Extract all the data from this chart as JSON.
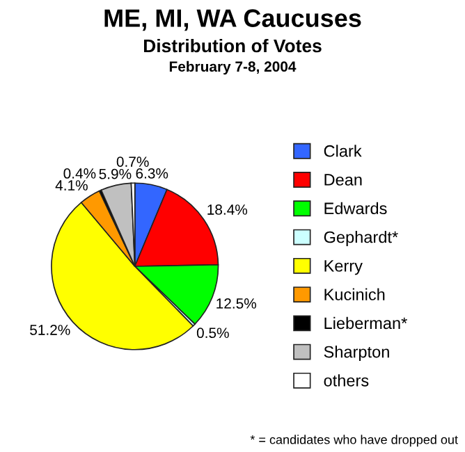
{
  "chart_data": {
    "type": "pie",
    "title": "ME, MI, WA Caucuses",
    "subtitle": "Distribution of Votes",
    "annotations": [
      "February 7-8, 2004",
      "* = candidates who have dropped out"
    ],
    "categories": [
      "Clark",
      "Dean",
      "Edwards",
      "Gephardt*",
      "Kerry",
      "Kucinich",
      "Lieberman*",
      "Sharpton",
      "others"
    ],
    "values": [
      6.3,
      18.4,
      12.5,
      0.5,
      51.2,
      4.1,
      0.4,
      5.9,
      0.7
    ],
    "value_labels": [
      "6.3%",
      "18.4%",
      "12.5%",
      "0.5%",
      "51.2%",
      "4.1%",
      "0.4%",
      "5.9%",
      "0.7%"
    ],
    "colors": [
      "#3366ff",
      "#ff0000",
      "#00ff00",
      "#ccffff",
      "#ffff00",
      "#ff9900",
      "#000000",
      "#c0c0c0",
      "#ffffff"
    ],
    "legend": "right"
  }
}
